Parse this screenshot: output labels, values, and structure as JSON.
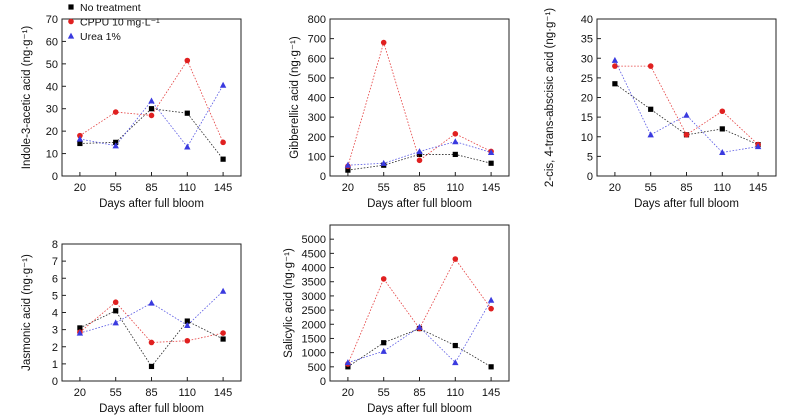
{
  "legend": [
    {
      "name": "No treatment",
      "color": "#000000",
      "marker": "square"
    },
    {
      "name": "CPPU 10 mg·L⁻¹",
      "color": "#e02020",
      "marker": "circle"
    },
    {
      "name": "Urea 1%",
      "color": "#3a3adf",
      "marker": "triangle"
    }
  ],
  "chart_data": [
    {
      "type": "line",
      "title": "",
      "xlabel": "Days after full bloom",
      "ylabel": "Indole-3-acetic acid (ng·g⁻¹)",
      "categories": [
        "20",
        "55",
        "85",
        "110",
        "145"
      ],
      "ylim": [
        0,
        70
      ],
      "yticks": [
        0,
        10,
        20,
        30,
        40,
        50,
        60,
        70
      ],
      "series": [
        {
          "name": "No treatment",
          "values": [
            14.5,
            15,
            30,
            28,
            7.5
          ]
        },
        {
          "name": "CPPU 10 mg·L⁻¹",
          "values": [
            18,
            28.5,
            27,
            51.5,
            15
          ]
        },
        {
          "name": "Urea 1%",
          "values": [
            16.5,
            13.5,
            33.5,
            13,
            40.5
          ]
        }
      ]
    },
    {
      "type": "line",
      "title": "",
      "xlabel": "Days after full bloom",
      "ylabel": "Gibberellic acid (ng·g⁻¹)",
      "categories": [
        "20",
        "55",
        "85",
        "110",
        "145"
      ],
      "ylim": [
        0,
        800
      ],
      "yticks": [
        0,
        100,
        200,
        300,
        400,
        500,
        600,
        700,
        800
      ],
      "series": [
        {
          "name": "No treatment",
          "values": [
            30,
            55,
            110,
            110,
            65
          ]
        },
        {
          "name": "CPPU 10 mg·L⁻¹",
          "values": [
            50,
            680,
            80,
            215,
            125
          ]
        },
        {
          "name": "Urea 1%",
          "values": [
            55,
            65,
            125,
            175,
            120
          ]
        }
      ]
    },
    {
      "type": "line",
      "title": "",
      "xlabel": "Days after full bloom",
      "ylabel": "2-cis, 4-trans-abscisic acid (ng·g⁻¹)",
      "categories": [
        "20",
        "55",
        "85",
        "110",
        "145"
      ],
      "ylim": [
        0,
        40
      ],
      "yticks": [
        0,
        5,
        10,
        15,
        20,
        25,
        30,
        35,
        40
      ],
      "series": [
        {
          "name": "No treatment",
          "values": [
            23.5,
            17,
            10.5,
            12,
            8
          ]
        },
        {
          "name": "CPPU 10 mg·L⁻¹",
          "values": [
            28,
            28,
            10.5,
            16.5,
            8
          ]
        },
        {
          "name": "Urea 1%",
          "values": [
            29.5,
            10.5,
            15.5,
            6,
            7.5
          ]
        }
      ]
    },
    {
      "type": "line",
      "title": "",
      "xlabel": "Days after full bloom",
      "ylabel": "Jasmonic acid (ng·g⁻¹)",
      "categories": [
        "20",
        "55",
        "85",
        "110",
        "145"
      ],
      "ylim": [
        0,
        8
      ],
      "yticks": [
        0,
        1,
        2,
        3,
        4,
        5,
        6,
        7,
        8
      ],
      "series": [
        {
          "name": "No treatment",
          "values": [
            3.1,
            4.1,
            0.85,
            3.5,
            2.45
          ]
        },
        {
          "name": "CPPU 10 mg·L⁻¹",
          "values": [
            2.85,
            4.6,
            2.25,
            2.35,
            2.8
          ]
        },
        {
          "name": "Urea 1%",
          "values": [
            2.8,
            3.4,
            4.55,
            3.25,
            5.25
          ]
        }
      ]
    },
    {
      "type": "line",
      "title": "",
      "xlabel": "Days after full bloom",
      "ylabel": "Salicylic acid (ng·g⁻¹)",
      "categories": [
        "20",
        "55",
        "85",
        "110",
        "145"
      ],
      "ylim": [
        0,
        5500
      ],
      "yticks": [
        0,
        500,
        1000,
        1500,
        2000,
        2500,
        3000,
        3500,
        4000,
        4500,
        5000
      ],
      "series": [
        {
          "name": "No treatment",
          "values": [
            500,
            1350,
            1850,
            1250,
            500
          ]
        },
        {
          "name": "CPPU 10 mg·L⁻¹",
          "values": [
            600,
            3600,
            1850,
            4300,
            2550
          ]
        },
        {
          "name": "Urea 1%",
          "values": [
            650,
            1050,
            1900,
            650,
            2850
          ]
        }
      ]
    }
  ]
}
